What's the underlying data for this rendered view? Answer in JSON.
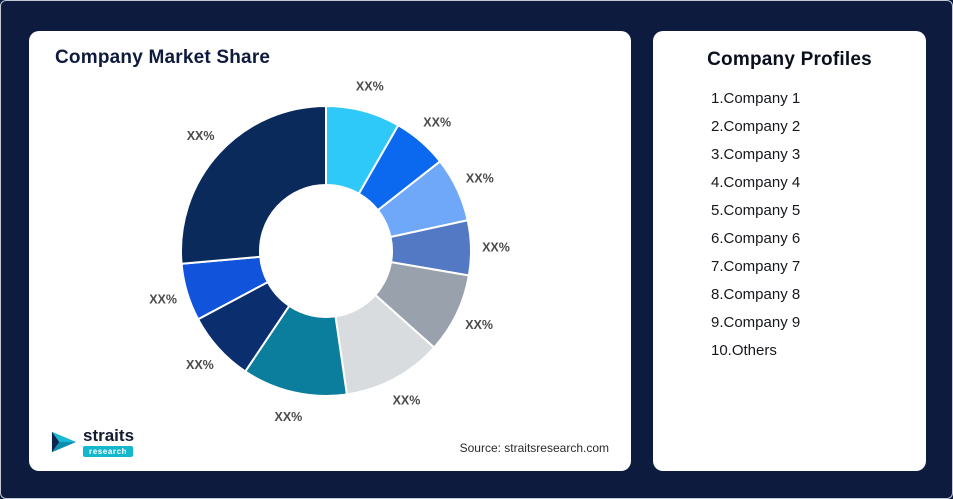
{
  "page": {
    "background_color": "#0D1C3E",
    "card_color": "#FFFFFF"
  },
  "left_card": {
    "title": "Company Market Share",
    "source": "Source: straitsresearch.com",
    "logo": {
      "name": "straits",
      "sub": "research",
      "accent_color": "#14B8CC"
    }
  },
  "right_card": {
    "title": "Company Profiles",
    "profiles": [
      "1.Company 1",
      "2.Company 2",
      "3.Company 3",
      "4.Company 4",
      "5.Company 5",
      "6.Company 6",
      "7.Company 7",
      "8.Company 8",
      "9.Company 9",
      "10.Others"
    ]
  },
  "chart_data": {
    "type": "pie",
    "subtype": "donut",
    "title": "Company Market Share",
    "start_angle_deg": 0,
    "direction": "clockwise",
    "donut_hole_ratio": 0.45,
    "label_color": "#4A4A4A",
    "gap_color": "#FFFFFF",
    "segments": [
      {
        "name": "Company 1",
        "label": "XX%",
        "value": 8.3,
        "color": "#2EC9F9"
      },
      {
        "name": "Company 2",
        "label": "XX%",
        "value": 6.1,
        "color": "#0A69EE"
      },
      {
        "name": "Company 3",
        "label": "XX%",
        "value": 7.2,
        "color": "#6FA8F8"
      },
      {
        "name": "Company 4",
        "label": "XX%",
        "value": 6.1,
        "color": "#5379C4"
      },
      {
        "name": "Company 5",
        "label": "XX%",
        "value": 8.9,
        "color": "#99A1AC"
      },
      {
        "name": "Company 6",
        "label": "XX%",
        "value": 11.1,
        "color": "#D9DCDF"
      },
      {
        "name": "Company 7",
        "label": "XX%",
        "value": 11.7,
        "color": "#0C7E9D"
      },
      {
        "name": "Company 8",
        "label": "XX%",
        "value": 7.8,
        "color": "#0A2E6E"
      },
      {
        "name": "Company 9",
        "label": "XX%",
        "value": 6.4,
        "color": "#1253DC"
      },
      {
        "name": "Others",
        "label": "XX%",
        "value": 26.4,
        "color": "#0A2A5C"
      }
    ]
  }
}
